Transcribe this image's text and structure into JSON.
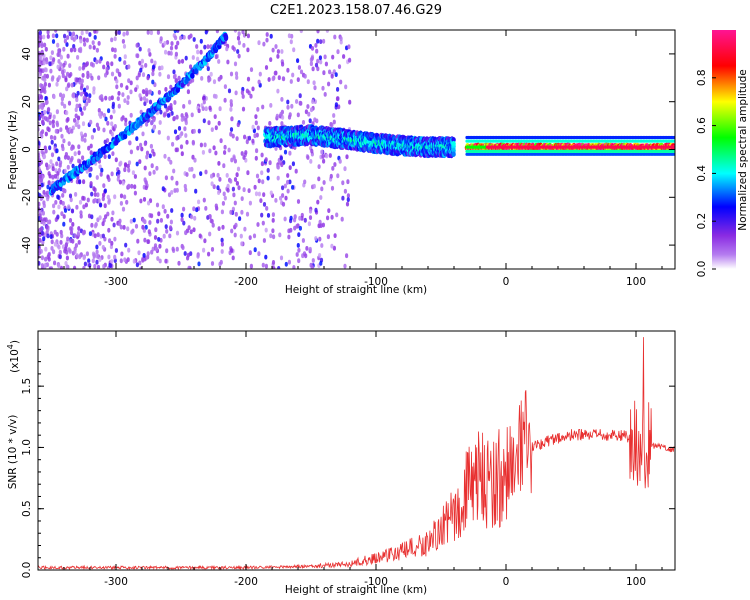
{
  "title": "C2E1.2023.158.07.46.G29",
  "chart_data": [
    {
      "type": "heatmap",
      "xlabel": "Height of straight line (km)",
      "ylabel": "Frequency (Hz)",
      "xlim": [
        -360,
        130
      ],
      "ylim": [
        -50,
        50
      ],
      "x_ticks": [
        -300,
        -200,
        -100,
        0,
        100
      ],
      "y_ticks": [
        -40,
        -20,
        0,
        20,
        40
      ],
      "colorbar": {
        "label": "Normalized spectral amplitude",
        "range": [
          0,
          1
        ],
        "ticks": [
          "0.0",
          "0.2",
          "0.4",
          "0.6",
          "0.8"
        ],
        "colors": [
          "#ffffff",
          "#8a2be2",
          "#0000ff",
          "#00ffff",
          "#00ff00",
          "#ffff00",
          "#ff0000",
          "#ff1493"
        ]
      },
      "features": [
        {
          "x": [
            -350,
            -320,
            -290,
            -260,
            -230,
            -215
          ],
          "y": [
            -17,
            -5,
            8,
            22,
            38,
            48
          ],
          "amplitude": 0.35
        },
        {
          "x": [
            -185,
            -150,
            -120,
            -90,
            -60,
            -40
          ],
          "y": [
            5,
            6,
            4,
            2,
            1,
            1
          ],
          "amplitude": 0.45
        },
        {
          "x": [
            -30,
            0,
            30,
            60,
            90,
            130
          ],
          "y": [
            1,
            1,
            1,
            1,
            1,
            1
          ],
          "amplitude": 0.95
        }
      ]
    },
    {
      "type": "line",
      "xlabel": "Height of straight line (km)",
      "ylabel": "SNR (10 * v/v)",
      "y_scale_label": "(x10",
      "y_scale_exp": "4",
      "xlim": [
        -360,
        130
      ],
      "ylim": [
        0,
        1.95
      ],
      "x_ticks": [
        -300,
        -200,
        -100,
        0,
        100
      ],
      "y_ticks": [
        "0.0",
        "0.5",
        "1.0",
        "1.5"
      ],
      "color": "#e83030",
      "series": [
        {
          "x": [
            -360,
            -300,
            -200,
            -150,
            -120,
            -100,
            -80,
            -60,
            -40,
            -30,
            -20,
            -10,
            0,
            10,
            20,
            30,
            50,
            70,
            90,
            100,
            105,
            110,
            120,
            130
          ],
          "y": [
            0.02,
            0.02,
            0.02,
            0.03,
            0.05,
            0.1,
            0.15,
            0.22,
            0.45,
            0.65,
            0.75,
            0.72,
            0.8,
            0.9,
            1.0,
            1.05,
            1.1,
            1.1,
            1.1,
            1.05,
            1.0,
            1.02,
            1.0,
            0.98
          ]
        }
      ]
    }
  ]
}
